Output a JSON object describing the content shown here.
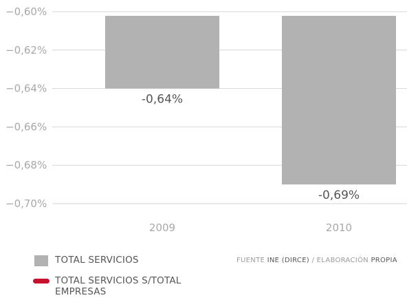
{
  "chart_data": {
    "type": "bar",
    "categories": [
      "2009",
      "2010"
    ],
    "series": [
      {
        "name": "TOTAL SERVICIOS",
        "values": [
          -0.64,
          -0.69
        ],
        "data_labels": [
          "-0,64%",
          "-0,69%"
        ],
        "color": "#b2b2b2"
      }
    ],
    "ylim": [
      -0.7,
      -0.6
    ],
    "yticks": [
      -0.6,
      -0.62,
      -0.64,
      -0.66,
      -0.68,
      -0.7
    ],
    "ytick_labels": [
      "−0,60%",
      "−0,62%",
      "−0,64%",
      "−0,66%",
      "−0,68%",
      "−0,70%"
    ],
    "grid": true,
    "legend_position": "bottom-left",
    "title": "",
    "xlabel": "",
    "ylabel": ""
  },
  "legend": {
    "items": [
      {
        "label": "TOTAL SERVICIOS",
        "kind": "box",
        "color": "#b2b2b2"
      },
      {
        "label": "TOTAL SERVICIOS S/TOTAL EMPRESAS",
        "kind": "line",
        "color": "#c8102e"
      }
    ]
  },
  "source": {
    "part1": "FUENTE ",
    "part2": "INE (DIRCE)",
    "part3": " / ELABORACIÓN ",
    "part4": "PROPIA"
  },
  "colors": {
    "bar": "#b2b2b2",
    "grid": "#d6d6d6",
    "tick_text": "#a8a8a8",
    "data_label": "#555555",
    "accent": "#c8102e"
  }
}
